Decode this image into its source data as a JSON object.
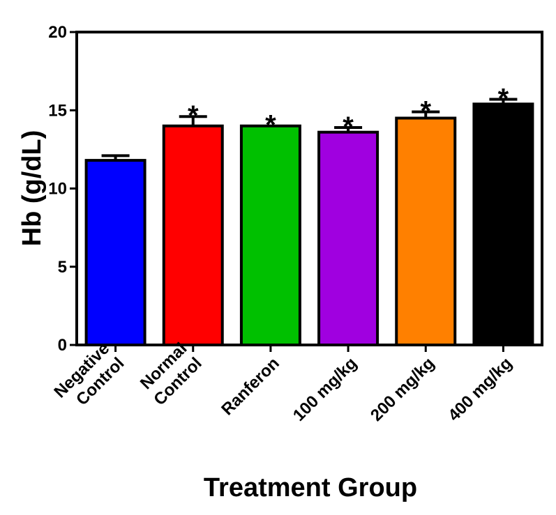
{
  "chart_data": {
    "type": "bar",
    "title": "",
    "xlabel": "Treatment Group",
    "ylabel": "Hb (g/dL)",
    "ylim": [
      0,
      20
    ],
    "yticks": [
      "0",
      "5",
      "10",
      "15",
      "20"
    ],
    "grid": false,
    "categories": [
      [
        "Negative",
        "Control"
      ],
      [
        "Normal",
        "Control"
      ],
      [
        "Ranferon"
      ],
      [
        "100 mg/kg"
      ],
      [
        "200 mg/kg"
      ],
      [
        "400 mg/kg"
      ]
    ],
    "values": [
      11.8,
      14.0,
      14.0,
      13.6,
      14.5,
      15.4
    ],
    "errors": [
      0.3,
      0.6,
      0.0,
      0.3,
      0.4,
      0.3
    ],
    "significance": [
      "",
      "*",
      "*",
      "*",
      "*",
      "*"
    ],
    "colors": [
      "#0000ff",
      "#ff0000",
      "#00c000",
      "#a000e0",
      "#ff8000",
      "#000000"
    ]
  }
}
